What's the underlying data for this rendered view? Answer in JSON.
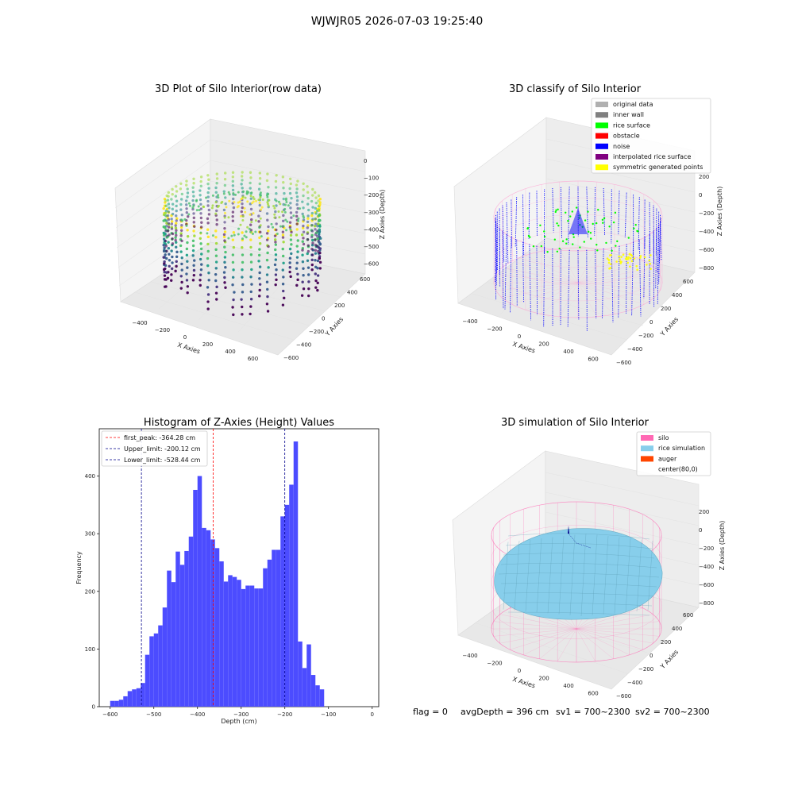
{
  "suptitle": "WJWJR05 2026-07-03 19:25:40",
  "footer": {
    "flag": "flag = 0",
    "avg": "avgDepth = 396 cm",
    "sv1": "sv1 = 700~2300",
    "sv2": "sv2 = 700~2300"
  },
  "panel_raw": {
    "title": "3D Plot of Silo Interior(row data)",
    "xlabel": "X Axies",
    "ylabel": "Y Axies",
    "zlabel": "Z Axies (Depth)",
    "xticks": [
      "−400",
      "−200",
      "0",
      "200",
      "400",
      "600"
    ],
    "yticks": [
      "−600",
      "−400",
      "−200",
      "0",
      "200",
      "400",
      "600"
    ],
    "zticks": [
      "0",
      "−100",
      "−200",
      "−300",
      "−400",
      "−500",
      "−600"
    ]
  },
  "panel_class": {
    "title": "3D classify of Silo Interior",
    "xlabel": "X Axies",
    "ylabel": "Y Axies",
    "zlabel": "Z Axies (Depth)",
    "xticks": [
      "−400",
      "−200",
      "0",
      "200",
      "400",
      "600"
    ],
    "yticks": [
      "−600",
      "−400",
      "−200",
      "0",
      "200",
      "400",
      "600"
    ],
    "zticks": [
      "200",
      "0",
      "−200",
      "−400",
      "−600",
      "−800"
    ],
    "legend": [
      {
        "label": "original data",
        "color": "#b0b0b0"
      },
      {
        "label": "inner wall",
        "color": "#808080"
      },
      {
        "label": "rice surface",
        "color": "#00ff00"
      },
      {
        "label": "obstacle",
        "color": "#ff0000"
      },
      {
        "label": "noise",
        "color": "#0000ff"
      },
      {
        "label": "interpolated rice surface",
        "color": "#800080"
      },
      {
        "label": "symmetric generated points",
        "color": "#ffff00"
      }
    ]
  },
  "panel_sim": {
    "title": "3D simulation of Silo Interior",
    "xlabel": "X Axies",
    "ylabel": "Y Axies",
    "zlabel": "Z Axies (Depth)",
    "xticks": [
      "−400",
      "−200",
      "0",
      "200",
      "400",
      "600"
    ],
    "yticks": [
      "−600",
      "−400",
      "−200",
      "0",
      "200",
      "400",
      "600"
    ],
    "zticks": [
      "200",
      "0",
      "−200",
      "−400",
      "−600",
      "−800"
    ],
    "legend": [
      {
        "label": "silo",
        "color": "#ff69b4"
      },
      {
        "label": "rice simulation",
        "color": "#87ceeb"
      },
      {
        "label": "auger",
        "color": "#ff4500"
      },
      {
        "label": "center(80,0)",
        "color": ""
      }
    ]
  },
  "colors": {
    "hist_bar": "#4c4cff",
    "peak_line": "#ff0000",
    "limit_line": "#00008b",
    "silo_wire": "#ff69b4",
    "rice": "#87ceeb",
    "noise": "#0000ff"
  },
  "chart_data": {
    "type": "bar",
    "title": "Histogram of Z-Axies (Height) Values",
    "xlabel": "Depth (cm)",
    "ylabel": "Frequency",
    "xlim": [
      -625,
      15
    ],
    "ylim": [
      0,
      482
    ],
    "xticks": [
      -600,
      -500,
      -400,
      -300,
      -200,
      -100,
      0
    ],
    "yticks": [
      0,
      100,
      200,
      300,
      400
    ],
    "bin_width": 10,
    "bin_start": -600,
    "values": [
      10,
      10,
      12,
      18,
      27,
      30,
      32,
      41,
      90,
      122,
      127,
      141,
      172,
      236,
      216,
      269,
      246,
      270,
      295,
      376,
      400,
      310,
      306,
      290,
      275,
      252,
      217,
      228,
      225,
      220,
      204,
      210,
      210,
      205,
      205,
      240,
      255,
      272,
      272,
      330,
      350,
      385,
      460,
      113,
      67,
      108,
      55,
      37,
      30
    ],
    "vlines": [
      {
        "label": "first_peak: -364.28 cm",
        "x": -364.28,
        "color": "#ff0000",
        "style": "dashed"
      },
      {
        "label": "Upper_limit: -200.12 cm",
        "x": -200.12,
        "color": "#00008b",
        "style": "dashed"
      },
      {
        "label": "Lower_limit: -528.44 cm",
        "x": -528.44,
        "color": "#00008b",
        "style": "dashed"
      }
    ],
    "legend_position": "upper-left"
  }
}
